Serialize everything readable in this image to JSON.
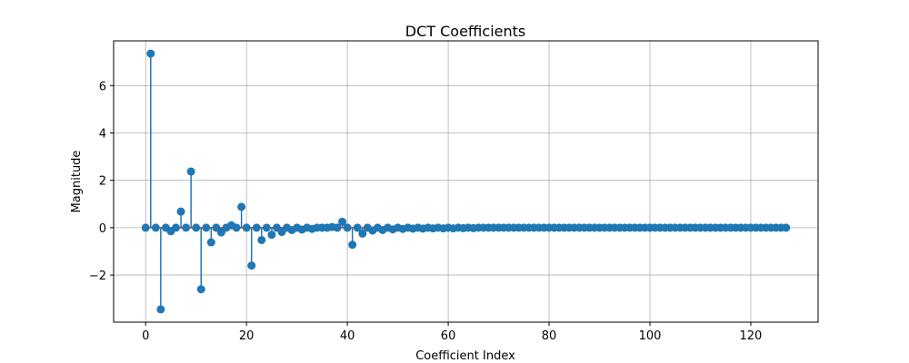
{
  "chart_data": {
    "type": "stem",
    "title": "DCT Coefficients",
    "xlabel": "Coefficient Index",
    "ylabel": "Magnitude",
    "x": [
      0,
      1,
      2,
      3,
      4,
      5,
      6,
      7,
      8,
      9,
      10,
      11,
      12,
      13,
      14,
      15,
      16,
      17,
      18,
      19,
      20,
      21,
      22,
      23,
      24,
      25,
      26,
      27,
      28,
      29,
      30,
      31,
      32,
      33,
      34,
      35,
      36,
      37,
      38,
      39,
      40,
      41,
      42,
      43,
      44,
      45,
      46,
      47,
      48,
      49,
      50,
      51,
      52,
      53,
      54,
      55,
      56,
      57,
      58,
      59,
      60,
      61,
      62,
      63,
      64,
      65,
      66,
      67,
      68,
      69,
      70,
      71,
      72,
      73,
      74,
      75,
      76,
      77,
      78,
      79,
      80,
      81,
      82,
      83,
      84,
      85,
      86,
      87,
      88,
      89,
      90,
      91,
      92,
      93,
      94,
      95,
      96,
      97,
      98,
      99,
      100,
      101,
      102,
      103,
      104,
      105,
      106,
      107,
      108,
      109,
      110,
      111,
      112,
      113,
      114,
      115,
      116,
      117,
      118,
      119,
      120,
      121,
      122,
      123,
      124,
      125,
      126,
      127
    ],
    "values": [
      0,
      7.35,
      0,
      -3.45,
      0,
      -0.15,
      0,
      0.68,
      0,
      2.37,
      0,
      -2.6,
      0,
      -0.62,
      0,
      -0.2,
      0,
      0.1,
      0,
      0.88,
      0,
      -1.6,
      0,
      -0.52,
      0,
      -0.3,
      0,
      -0.18,
      0,
      -0.1,
      0,
      -0.08,
      0,
      -0.05,
      0,
      0,
      0,
      0.03,
      0,
      0.25,
      0,
      -0.72,
      0,
      -0.25,
      0,
      -0.12,
      0,
      -0.1,
      0,
      -0.07,
      0,
      -0.05,
      0,
      -0.04,
      0,
      -0.04,
      0,
      -0.03,
      0,
      -0.03,
      0,
      -0.03,
      0,
      -0.02,
      0,
      -0.02,
      0,
      0,
      0,
      0,
      0,
      0,
      0,
      0,
      0,
      0,
      0,
      0,
      0,
      0,
      0,
      0,
      0,
      0,
      0,
      0,
      0,
      0,
      0,
      0,
      0,
      0,
      0,
      0,
      0,
      0,
      0,
      0,
      0,
      0,
      0,
      0,
      0,
      0,
      0,
      0,
      0,
      0,
      0,
      0,
      0,
      0,
      0,
      0,
      0,
      0,
      0,
      0,
      0,
      0,
      0,
      0,
      0,
      0,
      0,
      0,
      0,
      0
    ],
    "color": "#1f77b4",
    "baseline_color": "#d62728",
    "xlim": [
      -6.35,
      133.35
    ],
    "ylim": [
      -3.99,
      7.89
    ],
    "xticks": [
      0,
      20,
      40,
      60,
      80,
      100,
      120
    ],
    "yticks": [
      {
        "value": -2,
        "label": "−2"
      },
      0,
      2,
      4,
      6
    ],
    "grid": true
  }
}
